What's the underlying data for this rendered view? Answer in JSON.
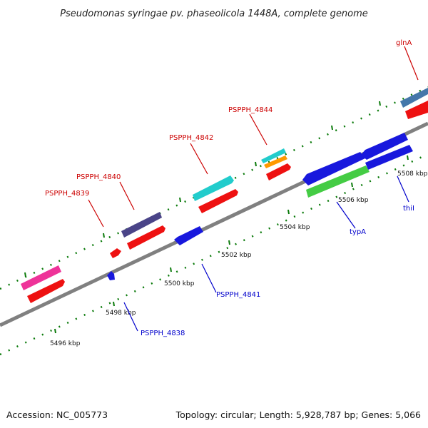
{
  "title": "Pseudomonas syringae pv. phaseolicola 1448A, complete genome",
  "footer": {
    "accession": "Accession: NC_005773",
    "stats": "Topology: circular; Length: 5,928,787 bp; Genes: 5,066"
  },
  "scale_labels": [
    "5496 kbp",
    "5498 kbp",
    "5500 kbp",
    "5502 kbp",
    "5504 kbp",
    "5506 kbp",
    "5508 kbp"
  ],
  "gene_labels_forward": [
    "PSPPH_4839",
    "PSPPH_4840",
    "PSPPH_4842",
    "PSPPH_4844",
    "glnA"
  ],
  "gene_labels_reverse": [
    "PSPPH_4838",
    "PSPPH_4841",
    "typA",
    "thiI"
  ],
  "colors": {
    "forward_label": "#cc0000",
    "reverse_label": "#0000cc",
    "backbone": "#808080",
    "tick": "#0a7a0a",
    "cds": "#ee1111",
    "reverse_cds": "#1818dd",
    "cog_pink": "#ee3399",
    "cog_purple": "#4a4488",
    "cog_cyan": "#22cccc",
    "cog_orange": "#ff9900",
    "cog_green": "#44cc44",
    "cog_steelblue": "#4477aa"
  }
}
